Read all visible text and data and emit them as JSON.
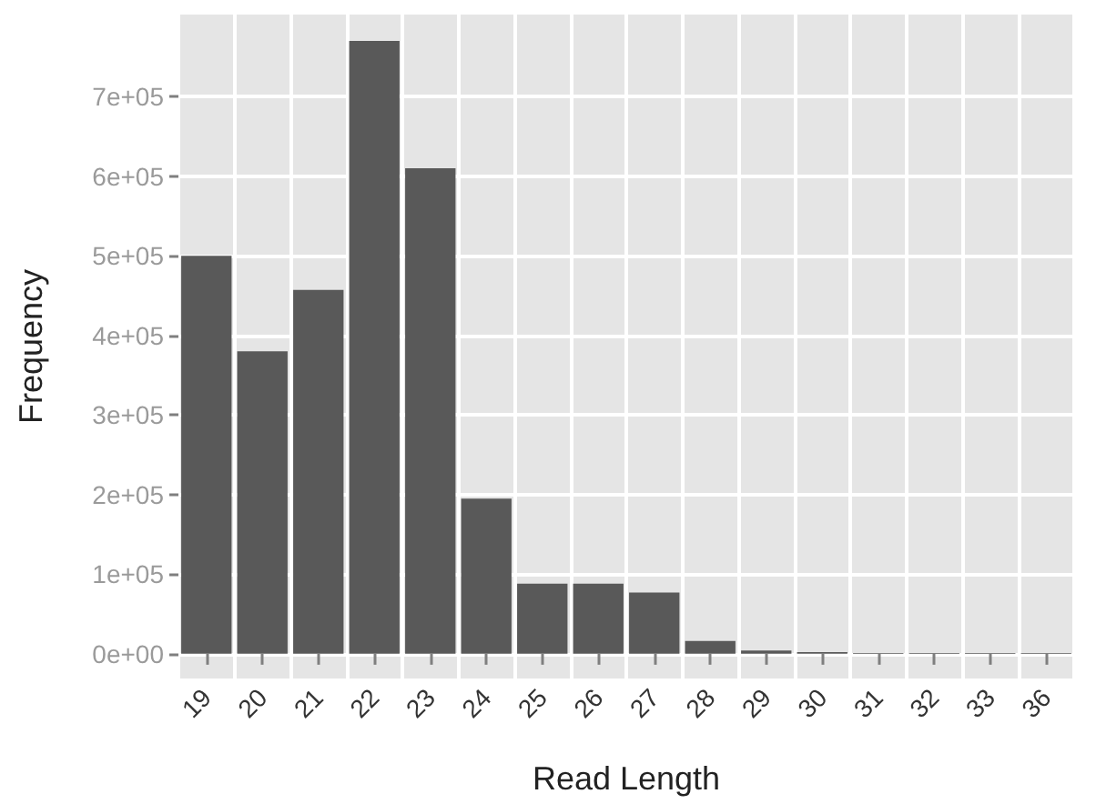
{
  "chart_data": {
    "type": "bar",
    "xlabel": "Read Length",
    "ylabel": "Frequency",
    "categories": [
      "19",
      "20",
      "21",
      "22",
      "23",
      "24",
      "25",
      "26",
      "27",
      "28",
      "29",
      "30",
      "31",
      "32",
      "33",
      "36"
    ],
    "values": [
      500000,
      380000,
      457000,
      770000,
      610000,
      195000,
      88000,
      88000,
      77000,
      16000,
      4000,
      2000,
      1000,
      1000,
      1000,
      1000
    ],
    "color": "#595959",
    "ylim": [
      -31000,
      803000
    ],
    "yticks": [
      {
        "value": 0,
        "label": "0e+00"
      },
      {
        "value": 100000,
        "label": "1e+05"
      },
      {
        "value": 200000,
        "label": "2e+05"
      },
      {
        "value": 300000,
        "label": "3e+05"
      },
      {
        "value": 400000,
        "label": "4e+05"
      },
      {
        "value": 500000,
        "label": "5e+05"
      },
      {
        "value": 600000,
        "label": "6e+05"
      },
      {
        "value": 700000,
        "label": "7e+05"
      }
    ],
    "grid": true
  }
}
